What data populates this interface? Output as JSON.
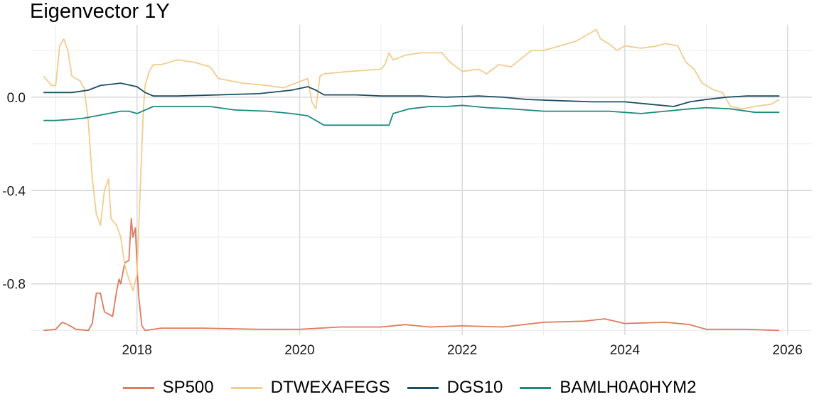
{
  "chart_data": {
    "type": "line",
    "title": "Eigenvector 1Y",
    "xlabel": "",
    "ylabel": "",
    "xlim": [
      2016.7,
      2026.3
    ],
    "ylim": [
      -1.02,
      0.31
    ],
    "x_ticks": [
      "2018",
      "2020",
      "2022",
      "2024",
      "2026"
    ],
    "y_ticks": [
      "0.0",
      "-0.4",
      "-0.8"
    ],
    "grid": true,
    "legend_position": "bottom",
    "series": [
      {
        "name": "SP500",
        "color": "#E07A5F",
        "points": [
          [
            2016.85,
            -1.0
          ],
          [
            2017.0,
            -0.995
          ],
          [
            2017.08,
            -0.965
          ],
          [
            2017.15,
            -0.975
          ],
          [
            2017.25,
            -0.995
          ],
          [
            2017.4,
            -1.0
          ],
          [
            2017.45,
            -0.97
          ],
          [
            2017.5,
            -0.84
          ],
          [
            2017.55,
            -0.84
          ],
          [
            2017.6,
            -0.92
          ],
          [
            2017.7,
            -0.94
          ],
          [
            2017.75,
            -0.83
          ],
          [
            2017.78,
            -0.78
          ],
          [
            2017.8,
            -0.8
          ],
          [
            2017.85,
            -0.71
          ],
          [
            2017.9,
            -0.7
          ],
          [
            2017.93,
            -0.52
          ],
          [
            2017.95,
            -0.6
          ],
          [
            2017.98,
            -0.56
          ],
          [
            2018.0,
            -0.72
          ],
          [
            2018.02,
            -0.85
          ],
          [
            2018.06,
            -0.98
          ],
          [
            2018.1,
            -1.0
          ],
          [
            2018.3,
            -0.99
          ],
          [
            2018.8,
            -0.99
          ],
          [
            2019.5,
            -0.995
          ],
          [
            2020.0,
            -0.995
          ],
          [
            2020.5,
            -0.985
          ],
          [
            2021.0,
            -0.985
          ],
          [
            2021.3,
            -0.975
          ],
          [
            2021.6,
            -0.985
          ],
          [
            2022.0,
            -0.98
          ],
          [
            2022.5,
            -0.985
          ],
          [
            2023.0,
            -0.965
          ],
          [
            2023.5,
            -0.96
          ],
          [
            2023.75,
            -0.95
          ],
          [
            2024.0,
            -0.97
          ],
          [
            2024.5,
            -0.965
          ],
          [
            2024.8,
            -0.975
          ],
          [
            2025.0,
            -0.995
          ],
          [
            2025.5,
            -0.995
          ],
          [
            2025.9,
            -1.0
          ]
        ]
      },
      {
        "name": "DTWEXAFEGS",
        "color": "#F2CC8F",
        "points": [
          [
            2016.85,
            0.09
          ],
          [
            2016.95,
            0.05
          ],
          [
            2017.0,
            0.05
          ],
          [
            2017.05,
            0.22
          ],
          [
            2017.1,
            0.25
          ],
          [
            2017.15,
            0.2
          ],
          [
            2017.2,
            0.09
          ],
          [
            2017.3,
            0.07
          ],
          [
            2017.35,
            0.04
          ],
          [
            2017.4,
            -0.1
          ],
          [
            2017.45,
            -0.35
          ],
          [
            2017.5,
            -0.5
          ],
          [
            2017.55,
            -0.55
          ],
          [
            2017.6,
            -0.4
          ],
          [
            2017.65,
            -0.35
          ],
          [
            2017.68,
            -0.52
          ],
          [
            2017.75,
            -0.55
          ],
          [
            2017.8,
            -0.6
          ],
          [
            2017.85,
            -0.72
          ],
          [
            2017.9,
            -0.78
          ],
          [
            2017.95,
            -0.83
          ],
          [
            2017.98,
            -0.79
          ],
          [
            2018.0,
            -0.76
          ],
          [
            2018.05,
            -0.3
          ],
          [
            2018.08,
            -0.05
          ],
          [
            2018.1,
            0.05
          ],
          [
            2018.15,
            0.11
          ],
          [
            2018.2,
            0.14
          ],
          [
            2018.3,
            0.14
          ],
          [
            2018.5,
            0.16
          ],
          [
            2018.7,
            0.15
          ],
          [
            2018.9,
            0.13
          ],
          [
            2019.0,
            0.08
          ],
          [
            2019.3,
            0.06
          ],
          [
            2019.6,
            0.05
          ],
          [
            2019.8,
            0.04
          ],
          [
            2019.95,
            0.06
          ],
          [
            2020.1,
            0.08
          ],
          [
            2020.15,
            -0.02
          ],
          [
            2020.2,
            -0.05
          ],
          [
            2020.25,
            0.09
          ],
          [
            2020.3,
            0.1
          ],
          [
            2020.6,
            0.11
          ],
          [
            2021.0,
            0.12
          ],
          [
            2021.05,
            0.14
          ],
          [
            2021.1,
            0.19
          ],
          [
            2021.15,
            0.16
          ],
          [
            2021.3,
            0.18
          ],
          [
            2021.5,
            0.19
          ],
          [
            2021.75,
            0.19
          ],
          [
            2021.85,
            0.15
          ],
          [
            2022.0,
            0.11
          ],
          [
            2022.2,
            0.12
          ],
          [
            2022.3,
            0.1
          ],
          [
            2022.45,
            0.14
          ],
          [
            2022.6,
            0.13
          ],
          [
            2022.85,
            0.2
          ],
          [
            2023.0,
            0.2
          ],
          [
            2023.2,
            0.22
          ],
          [
            2023.4,
            0.24
          ],
          [
            2023.6,
            0.28
          ],
          [
            2023.65,
            0.29
          ],
          [
            2023.7,
            0.25
          ],
          [
            2023.8,
            0.23
          ],
          [
            2023.9,
            0.2
          ],
          [
            2023.95,
            0.21
          ],
          [
            2024.0,
            0.22
          ],
          [
            2024.2,
            0.21
          ],
          [
            2024.4,
            0.22
          ],
          [
            2024.5,
            0.23
          ],
          [
            2024.65,
            0.22
          ],
          [
            2024.75,
            0.15
          ],
          [
            2024.85,
            0.12
          ],
          [
            2024.95,
            0.06
          ],
          [
            2025.1,
            0.03
          ],
          [
            2025.2,
            0.02
          ],
          [
            2025.25,
            -0.01
          ],
          [
            2025.3,
            -0.04
          ],
          [
            2025.45,
            -0.05
          ],
          [
            2025.6,
            -0.04
          ],
          [
            2025.8,
            -0.03
          ],
          [
            2025.9,
            -0.01
          ]
        ]
      },
      {
        "name": "DGS10",
        "color": "#1D4E63",
        "points": [
          [
            2016.85,
            0.02
          ],
          [
            2017.2,
            0.02
          ],
          [
            2017.4,
            0.03
          ],
          [
            2017.55,
            0.05
          ],
          [
            2017.8,
            0.06
          ],
          [
            2018.0,
            0.045
          ],
          [
            2018.1,
            0.02
          ],
          [
            2018.2,
            0.005
          ],
          [
            2018.5,
            0.005
          ],
          [
            2019.0,
            0.01
          ],
          [
            2019.5,
            0.015
          ],
          [
            2019.9,
            0.03
          ],
          [
            2020.1,
            0.045
          ],
          [
            2020.2,
            0.03
          ],
          [
            2020.3,
            0.01
          ],
          [
            2020.7,
            0.01
          ],
          [
            2021.0,
            0.005
          ],
          [
            2021.5,
            0.005
          ],
          [
            2021.8,
            0.0
          ],
          [
            2022.2,
            0.005
          ],
          [
            2022.5,
            0.0
          ],
          [
            2022.8,
            -0.01
          ],
          [
            2023.2,
            -0.015
          ],
          [
            2023.6,
            -0.02
          ],
          [
            2024.0,
            -0.02
          ],
          [
            2024.3,
            -0.03
          ],
          [
            2024.6,
            -0.04
          ],
          [
            2024.8,
            -0.02
          ],
          [
            2025.0,
            -0.01
          ],
          [
            2025.25,
            0.0
          ],
          [
            2025.5,
            0.005
          ],
          [
            2025.9,
            0.005
          ]
        ]
      },
      {
        "name": "BAMLH0A0HYM2",
        "color": "#1E8A7E",
        "points": [
          [
            2016.85,
            -0.1
          ],
          [
            2017.0,
            -0.1
          ],
          [
            2017.2,
            -0.095
          ],
          [
            2017.35,
            -0.09
          ],
          [
            2017.5,
            -0.08
          ],
          [
            2017.8,
            -0.06
          ],
          [
            2017.9,
            -0.06
          ],
          [
            2018.0,
            -0.07
          ],
          [
            2018.2,
            -0.04
          ],
          [
            2018.5,
            -0.04
          ],
          [
            2018.9,
            -0.04
          ],
          [
            2019.2,
            -0.055
          ],
          [
            2019.6,
            -0.06
          ],
          [
            2019.9,
            -0.07
          ],
          [
            2020.1,
            -0.08
          ],
          [
            2020.3,
            -0.12
          ],
          [
            2020.6,
            -0.12
          ],
          [
            2020.9,
            -0.12
          ],
          [
            2021.1,
            -0.12
          ],
          [
            2021.15,
            -0.07
          ],
          [
            2021.35,
            -0.05
          ],
          [
            2021.6,
            -0.04
          ],
          [
            2021.8,
            -0.04
          ],
          [
            2022.0,
            -0.035
          ],
          [
            2022.3,
            -0.045
          ],
          [
            2022.6,
            -0.05
          ],
          [
            2023.0,
            -0.06
          ],
          [
            2023.4,
            -0.06
          ],
          [
            2023.8,
            -0.06
          ],
          [
            2024.2,
            -0.07
          ],
          [
            2024.5,
            -0.06
          ],
          [
            2024.8,
            -0.05
          ],
          [
            2025.0,
            -0.045
          ],
          [
            2025.3,
            -0.05
          ],
          [
            2025.6,
            -0.065
          ],
          [
            2025.9,
            -0.065
          ]
        ]
      }
    ]
  }
}
